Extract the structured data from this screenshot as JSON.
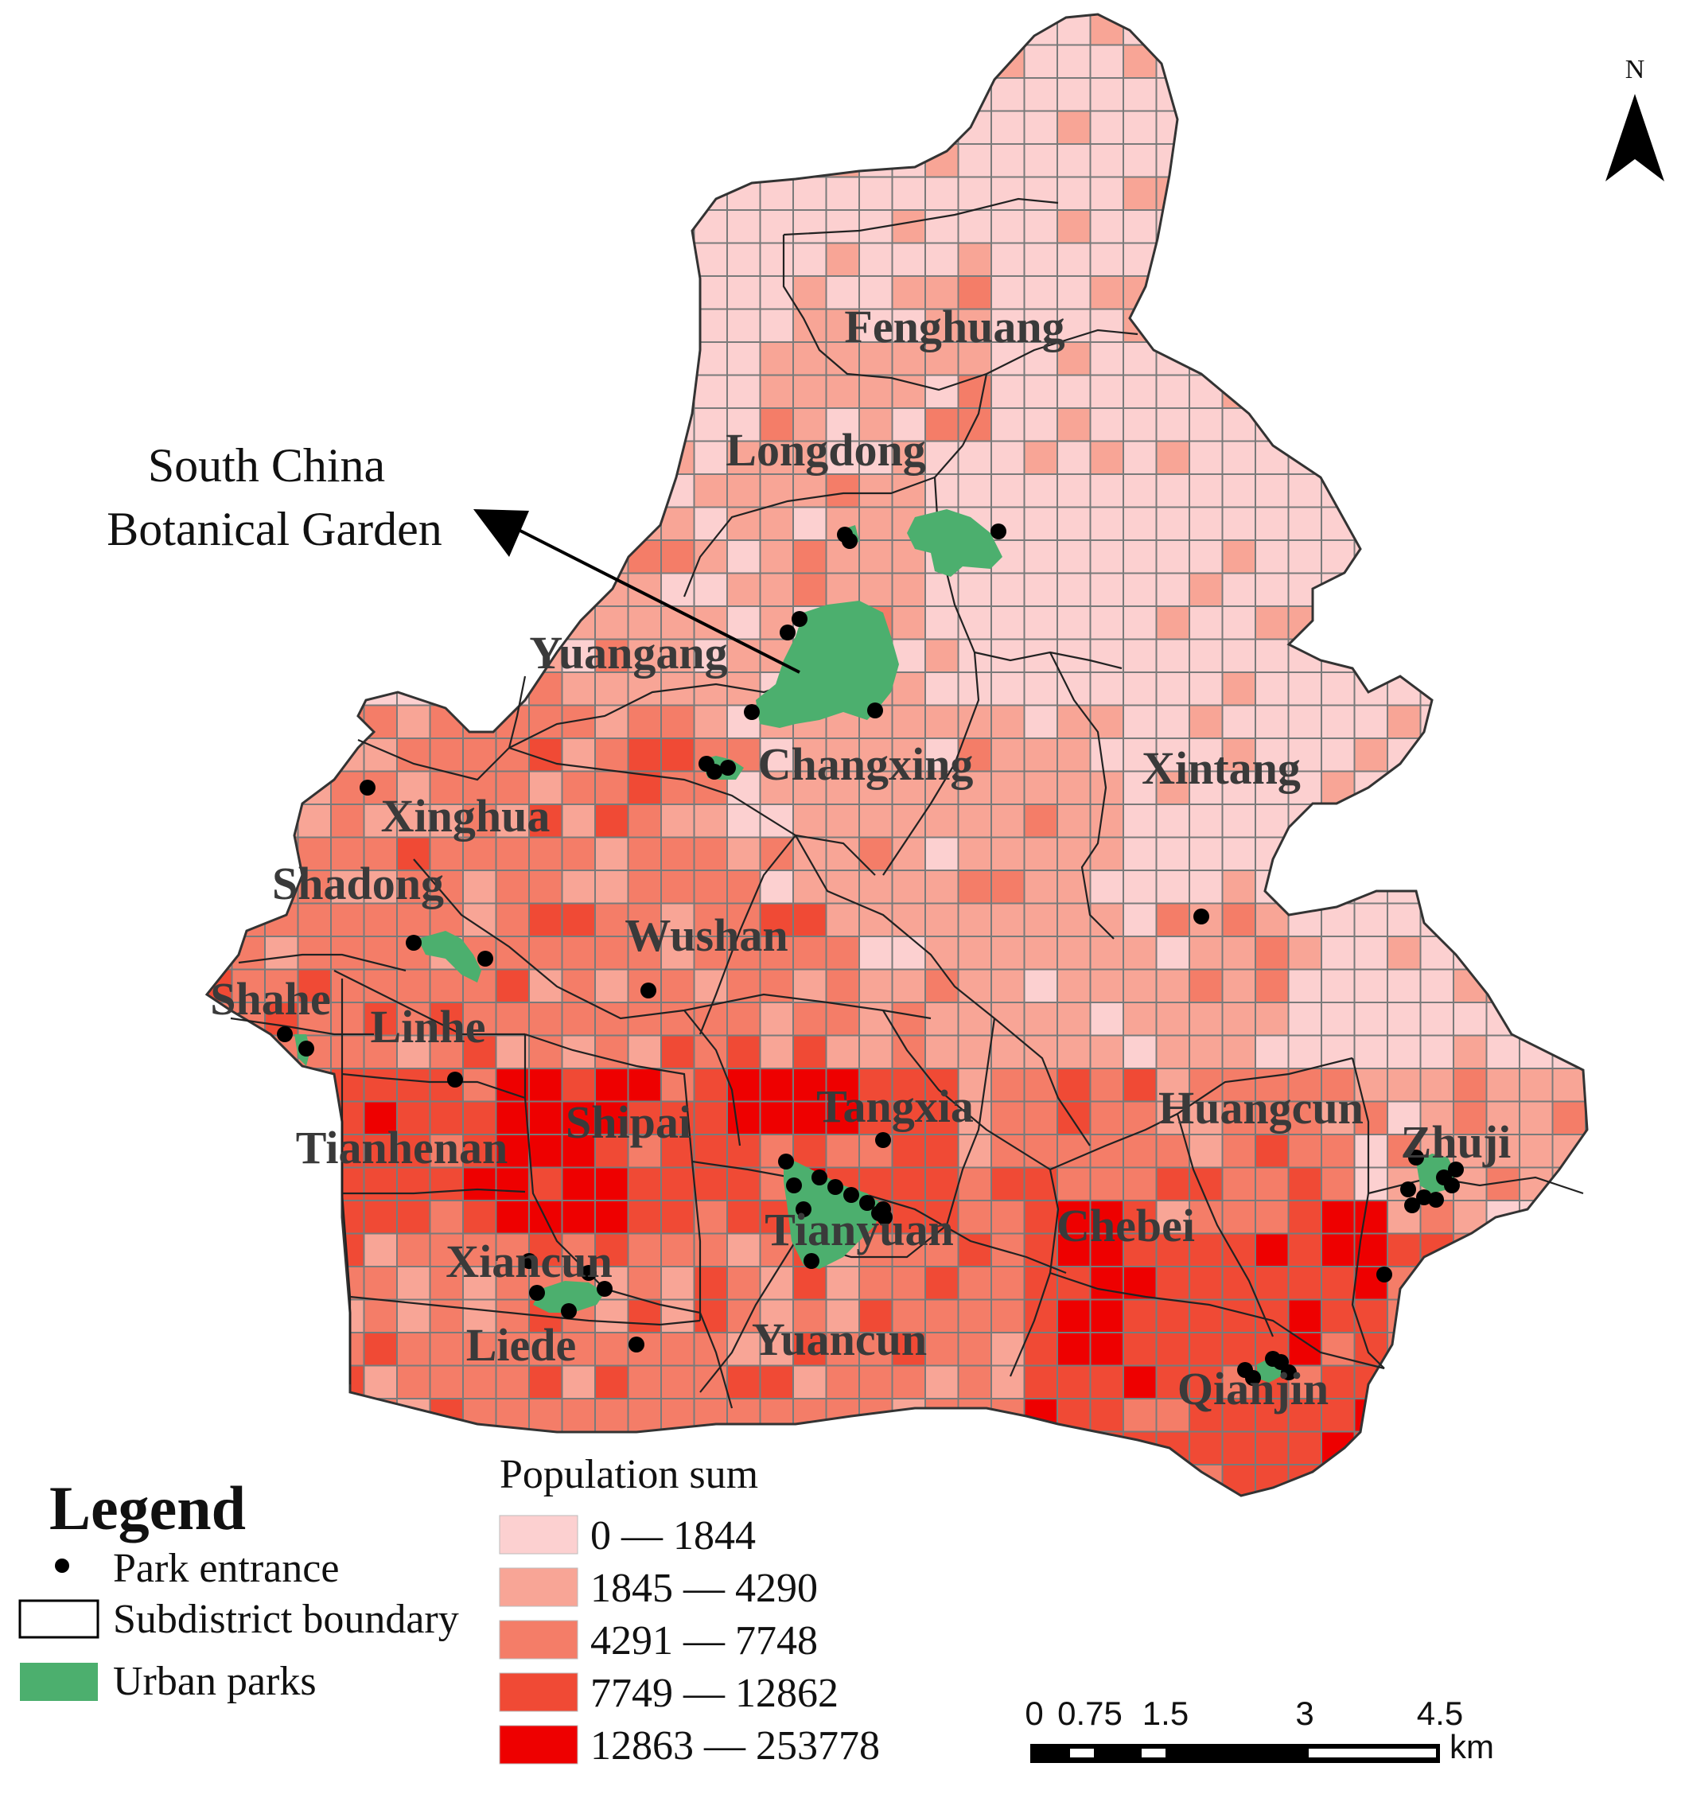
{
  "subdistricts": [
    "Fenghuang",
    "Longdong",
    "Yuangang",
    "Changxing",
    "Xintang",
    "Xinghua",
    "Shadong",
    "Wushan",
    "Shahe",
    "Linhe",
    "Tangxia",
    "Shipai",
    "Tianhenan",
    "Huangcun",
    "Zhuji",
    "Tianyuan",
    "Chebei",
    "Xiancun",
    "Liede",
    "Yuancun",
    "Qianjin"
  ],
  "annotation": {
    "line1": "South China",
    "line2": "Botanical Garden"
  },
  "legend": {
    "title": "Legend",
    "entrance": "Park entrance",
    "boundary": "Subdistrict boundary",
    "parks": "Urban parks"
  },
  "population": {
    "title": "Population sum",
    "classes": [
      {
        "label": "0 — 1844",
        "color": "#fcd0d0"
      },
      {
        "label": "1845 — 4290",
        "color": "#f8a596"
      },
      {
        "label": "4291 — 7748",
        "color": "#f47d68"
      },
      {
        "label": "7749 — 12862",
        "color": "#f04a35"
      },
      {
        "label": "12863 — 253778",
        "color": "#ee0000"
      }
    ]
  },
  "scalebar": {
    "ticks": [
      "0",
      "0.75",
      "1.5",
      "3",
      "4.5"
    ],
    "unit": "km"
  },
  "north": "N",
  "colors": {
    "park": "#4caf6e",
    "grid": "#7a7a7a",
    "boundary": "#222222",
    "entrance": "#000000"
  }
}
